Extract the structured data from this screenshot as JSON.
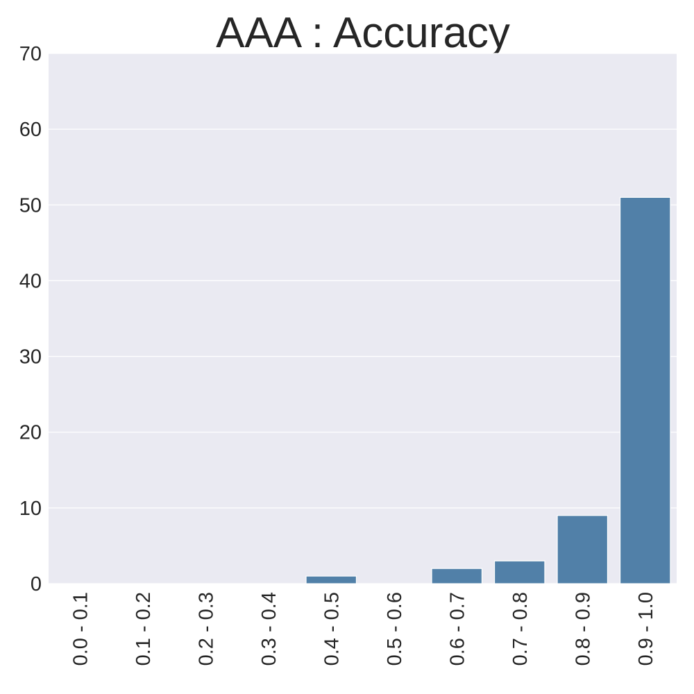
{
  "chart_data": {
    "type": "bar",
    "title": "AAA : Accuracy",
    "xlabel": "",
    "ylabel": "",
    "categories": [
      "0.0 - 0.1",
      "0.1 - 0.2",
      "0.2 - 0.3",
      "0.3 - 0.4",
      "0.4 - 0.5",
      "0.5 - 0.6",
      "0.6 - 0.7",
      "0.7 - 0.8",
      "0.8 - 0.9",
      "0.9 - 1.0"
    ],
    "values": [
      0,
      0,
      0,
      0,
      1,
      0,
      2,
      3,
      9,
      51
    ],
    "ylim": [
      0,
      70
    ],
    "yticks": [
      0,
      10,
      20,
      30,
      40,
      50,
      60,
      70
    ],
    "grid": true,
    "legend": "none",
    "colors": {
      "bar": "#5180a8",
      "background": "#eaeaf2",
      "grid": "#ffffff",
      "text": "#262626"
    }
  }
}
